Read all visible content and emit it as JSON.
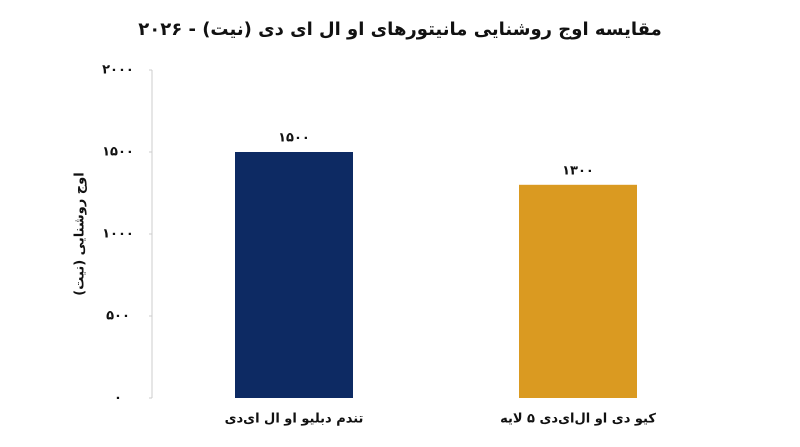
{
  "chart_data": {
    "type": "bar",
    "title": "مقایسه اوج روشنایی مانیتورهای او ال ای دی (نیت) - ۲۰۲۶",
    "y_label": "اوج روشنایی (نیت)",
    "categories": [
      "تندم دبلیو او ال ای‌دی",
      "کیو دی او ال‌ای‌دی ۵ لایه"
    ],
    "values": [
      1500,
      1300
    ],
    "value_labels": [
      "۱۵۰۰",
      "۱۳۰۰"
    ],
    "colors": [
      "#0d2a63",
      "#da9a21"
    ],
    "ylim": [
      0,
      2000
    ],
    "yticks": [
      {
        "value": 0,
        "label": "۰"
      },
      {
        "value": 500,
        "label": "۵۰۰"
      },
      {
        "value": 1000,
        "label": "۱۰۰۰"
      },
      {
        "value": 1500,
        "label": "۱۵۰۰"
      },
      {
        "value": 2000,
        "label": "۲۰۰۰"
      }
    ],
    "grid": false
  }
}
